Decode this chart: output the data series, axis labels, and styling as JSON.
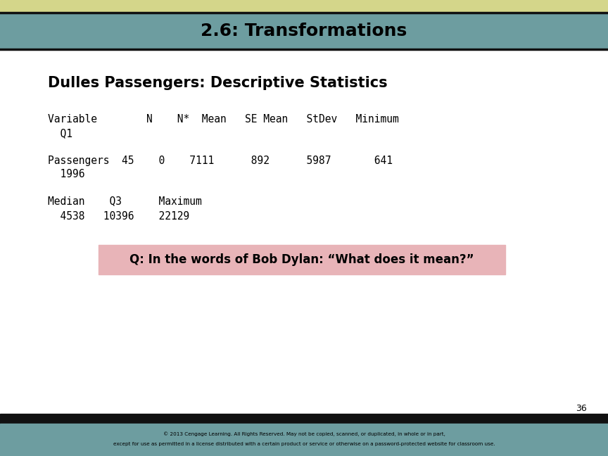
{
  "title": "2.6: Transformations",
  "title_bg_color": "#6d9da0",
  "title_stripe_color": "#d4d68a",
  "title_text_color": "#000000",
  "bg_color": "#ffffff",
  "subtitle": "Dulles Passengers: Descriptive Statistics",
  "table_lines": [
    "Variable        N    N*  Mean   SE Mean   StDev   Minimum",
    "  Q1",
    "Passengers  45    0    7111      892      5987       641",
    "  1996",
    "Median    Q3      Maximum",
    "  4538   10396    22129"
  ],
  "question_text": "Q: In the words of Bob Dylan: “What does it mean?”",
  "question_bg_color": "#e8b4b8",
  "footer_text1": "© 2013 Cengage Learning. All Rights Reserved. May not be copied, scanned, or duplicated, in whole or in part,",
  "footer_text2": "except for use as permitted in a license distributed with a certain product or service or otherwise on a password-protected website for classroom use.",
  "footer_bg_color": "#6d9da0",
  "page_number": "36",
  "black_bar_color": "#111111"
}
